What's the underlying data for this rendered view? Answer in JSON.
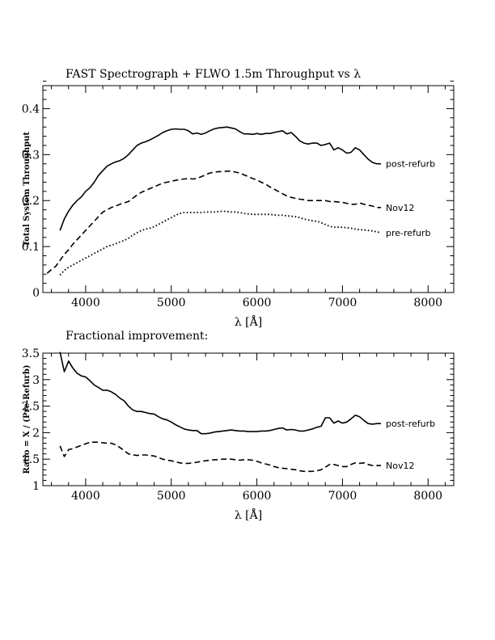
{
  "chart_data": [
    {
      "type": "line",
      "title": "FAST Spectrograph + FLWO 1.5m Throughput vs λ",
      "xlabel": "λ [Å]",
      "ylabel": "Total System Throughput",
      "xlim": [
        3500,
        8300
      ],
      "ylim": [
        0,
        0.45
      ],
      "x_ticks": [
        "4000",
        "5000",
        "6000",
        "7000",
        "8000"
      ],
      "y_ticks": [
        "0",
        "0.1",
        "0.2",
        "0.3",
        "0.4"
      ],
      "grid": false,
      "legend": "inline labels at right end of each curve",
      "series": [
        {
          "name": "post-refurb",
          "style": "solid",
          "x": [
            3700,
            3750,
            3800,
            3850,
            3900,
            3950,
            4000,
            4050,
            4100,
            4150,
            4200,
            4250,
            4300,
            4350,
            4400,
            4450,
            4500,
            4550,
            4600,
            4650,
            4700,
            4750,
            4800,
            4850,
            4900,
            4950,
            5000,
            5050,
            5100,
            5150,
            5200,
            5250,
            5300,
            5350,
            5400,
            5450,
            5500,
            5550,
            5600,
            5650,
            5700,
            5750,
            5800,
            5850,
            5900,
            5950,
            6000,
            6050,
            6100,
            6150,
            6200,
            6250,
            6300,
            6350,
            6400,
            6450,
            6500,
            6550,
            6600,
            6650,
            6700,
            6750,
            6800,
            6850,
            6900,
            6950,
            7000,
            7050,
            7100,
            7150,
            7200,
            7250,
            7300,
            7350,
            7400,
            7450
          ],
          "y": [
            0.135,
            0.16,
            0.177,
            0.19,
            0.2,
            0.208,
            0.22,
            0.228,
            0.24,
            0.255,
            0.265,
            0.275,
            0.28,
            0.284,
            0.287,
            0.292,
            0.3,
            0.31,
            0.32,
            0.325,
            0.328,
            0.332,
            0.337,
            0.342,
            0.348,
            0.352,
            0.355,
            0.356,
            0.355,
            0.355,
            0.352,
            0.345,
            0.347,
            0.344,
            0.347,
            0.352,
            0.356,
            0.358,
            0.359,
            0.36,
            0.358,
            0.356,
            0.35,
            0.345,
            0.345,
            0.344,
            0.346,
            0.344,
            0.346,
            0.346,
            0.348,
            0.35,
            0.352,
            0.345,
            0.348,
            0.34,
            0.33,
            0.325,
            0.323,
            0.325,
            0.325,
            0.32,
            0.322,
            0.325,
            0.31,
            0.315,
            0.31,
            0.303,
            0.305,
            0.315,
            0.31,
            0.3,
            0.29,
            0.283,
            0.28,
            0.28
          ]
        },
        {
          "name": "Nov12",
          "style": "dashed",
          "x": [
            3550,
            3600,
            3650,
            3700,
            3750,
            3800,
            3850,
            3900,
            3950,
            4000,
            4050,
            4100,
            4150,
            4200,
            4250,
            4300,
            4350,
            4400,
            4450,
            4500,
            4550,
            4600,
            4650,
            4700,
            4750,
            4800,
            4850,
            4900,
            4950,
            5000,
            5050,
            5100,
            5150,
            5200,
            5250,
            5300,
            5350,
            5400,
            5450,
            5500,
            5550,
            5600,
            5650,
            5700,
            5750,
            5800,
            5850,
            5900,
            5950,
            6000,
            6050,
            6100,
            6150,
            6200,
            6250,
            6300,
            6350,
            6400,
            6450,
            6500,
            6550,
            6600,
            6650,
            6700,
            6750,
            6800,
            6850,
            6900,
            6950,
            7000,
            7050,
            7100,
            7150,
            7200,
            7250,
            7300,
            7350,
            7400,
            7450
          ],
          "y": [
            0.042,
            0.05,
            0.057,
            0.07,
            0.083,
            0.093,
            0.105,
            0.115,
            0.125,
            0.135,
            0.145,
            0.155,
            0.165,
            0.175,
            0.18,
            0.185,
            0.188,
            0.192,
            0.195,
            0.198,
            0.205,
            0.212,
            0.218,
            0.222,
            0.226,
            0.23,
            0.234,
            0.238,
            0.24,
            0.242,
            0.244,
            0.246,
            0.247,
            0.248,
            0.247,
            0.248,
            0.252,
            0.256,
            0.26,
            0.262,
            0.263,
            0.263,
            0.264,
            0.264,
            0.262,
            0.26,
            0.256,
            0.252,
            0.248,
            0.245,
            0.24,
            0.236,
            0.23,
            0.225,
            0.22,
            0.215,
            0.21,
            0.207,
            0.205,
            0.203,
            0.202,
            0.2,
            0.2,
            0.2,
            0.2,
            0.2,
            0.198,
            0.198,
            0.197,
            0.196,
            0.194,
            0.192,
            0.192,
            0.195,
            0.192,
            0.19,
            0.188,
            0.185,
            0.185
          ]
        },
        {
          "name": "pre-refurb",
          "style": "dotted",
          "x": [
            3700,
            3750,
            3800,
            3850,
            3900,
            3950,
            4000,
            4050,
            4100,
            4150,
            4200,
            4250,
            4300,
            4350,
            4400,
            4450,
            4500,
            4550,
            4600,
            4650,
            4700,
            4750,
            4800,
            4850,
            4900,
            4950,
            5000,
            5050,
            5100,
            5150,
            5200,
            5250,
            5300,
            5350,
            5400,
            5450,
            5500,
            5550,
            5600,
            5650,
            5700,
            5750,
            5800,
            5850,
            5900,
            5950,
            6000,
            6050,
            6100,
            6150,
            6200,
            6250,
            6300,
            6350,
            6400,
            6450,
            6500,
            6550,
            6600,
            6650,
            6700,
            6750,
            6800,
            6850,
            6900,
            6950,
            7000,
            7050,
            7100,
            7150,
            7200,
            7250,
            7300,
            7350,
            7400,
            7450
          ],
          "y": [
            0.038,
            0.048,
            0.055,
            0.06,
            0.065,
            0.07,
            0.075,
            0.08,
            0.085,
            0.09,
            0.095,
            0.1,
            0.103,
            0.106,
            0.11,
            0.113,
            0.118,
            0.125,
            0.13,
            0.135,
            0.138,
            0.14,
            0.143,
            0.148,
            0.153,
            0.158,
            0.163,
            0.168,
            0.172,
            0.174,
            0.174,
            0.174,
            0.174,
            0.174,
            0.175,
            0.175,
            0.175,
            0.176,
            0.177,
            0.176,
            0.175,
            0.175,
            0.174,
            0.172,
            0.171,
            0.17,
            0.17,
            0.17,
            0.17,
            0.17,
            0.169,
            0.168,
            0.168,
            0.167,
            0.166,
            0.165,
            0.163,
            0.16,
            0.158,
            0.156,
            0.155,
            0.152,
            0.148,
            0.144,
            0.142,
            0.142,
            0.142,
            0.141,
            0.14,
            0.138,
            0.137,
            0.136,
            0.135,
            0.134,
            0.132,
            0.13
          ]
        }
      ]
    },
    {
      "type": "line",
      "title": "Fractional improvement:",
      "xlabel": "λ [Å]",
      "ylabel": "Ratio = X / (Pre-Refurb)",
      "xlim": [
        3500,
        8300
      ],
      "ylim": [
        1,
        3.5
      ],
      "x_ticks": [
        "4000",
        "5000",
        "6000",
        "7000",
        "8000"
      ],
      "y_ticks": [
        "1",
        "1.5",
        "2",
        "2.5",
        "3",
        "3.5"
      ],
      "grid": false,
      "legend": "inline labels at right end of each curve",
      "series": [
        {
          "name": "post-refurb",
          "style": "solid",
          "x": [
            3700,
            3750,
            3800,
            3850,
            3900,
            3950,
            4000,
            4050,
            4100,
            4150,
            4200,
            4250,
            4300,
            4350,
            4400,
            4450,
            4500,
            4550,
            4600,
            4650,
            4700,
            4750,
            4800,
            4850,
            4900,
            4950,
            5000,
            5050,
            5100,
            5150,
            5200,
            5250,
            5300,
            5350,
            5400,
            5450,
            5500,
            5550,
            5600,
            5650,
            5700,
            5750,
            5800,
            5850,
            5900,
            5950,
            6000,
            6050,
            6100,
            6150,
            6200,
            6250,
            6300,
            6350,
            6400,
            6450,
            6500,
            6550,
            6600,
            6650,
            6700,
            6750,
            6800,
            6850,
            6900,
            6950,
            7000,
            7050,
            7100,
            7150,
            7200,
            7250,
            7300,
            7350,
            7400,
            7450
          ],
          "y": [
            3.52,
            3.15,
            3.35,
            3.22,
            3.12,
            3.07,
            3.05,
            2.98,
            2.9,
            2.85,
            2.8,
            2.8,
            2.77,
            2.72,
            2.65,
            2.6,
            2.5,
            2.43,
            2.4,
            2.4,
            2.38,
            2.36,
            2.35,
            2.3,
            2.26,
            2.24,
            2.2,
            2.15,
            2.11,
            2.07,
            2.05,
            2.04,
            2.04,
            1.98,
            1.98,
            1.99,
            2.01,
            2.02,
            2.03,
            2.04,
            2.05,
            2.04,
            2.03,
            2.03,
            2.02,
            2.02,
            2.02,
            2.03,
            2.03,
            2.04,
            2.06,
            2.08,
            2.09,
            2.05,
            2.06,
            2.05,
            2.03,
            2.03,
            2.05,
            2.07,
            2.1,
            2.12,
            2.28,
            2.28,
            2.18,
            2.22,
            2.18,
            2.2,
            2.26,
            2.33,
            2.3,
            2.23,
            2.17,
            2.16,
            2.17,
            2.17
          ]
        },
        {
          "name": "Nov12",
          "style": "dashed",
          "x": [
            3700,
            3750,
            3800,
            3850,
            3900,
            3950,
            4000,
            4050,
            4100,
            4150,
            4200,
            4250,
            4300,
            4350,
            4400,
            4450,
            4500,
            4550,
            4600,
            4650,
            4700,
            4750,
            4800,
            4850,
            4900,
            4950,
            5000,
            5050,
            5100,
            5150,
            5200,
            5250,
            5300,
            5350,
            5400,
            5450,
            5500,
            5550,
            5600,
            5650,
            5700,
            5750,
            5800,
            5850,
            5900,
            5950,
            6000,
            6050,
            6100,
            6150,
            6200,
            6250,
            6300,
            6350,
            6400,
            6450,
            6500,
            6550,
            6600,
            6650,
            6700,
            6750,
            6800,
            6850,
            6900,
            6950,
            7000,
            7050,
            7100,
            7150,
            7200,
            7250,
            7300,
            7350,
            7400,
            7450
          ],
          "y": [
            1.75,
            1.55,
            1.68,
            1.7,
            1.73,
            1.76,
            1.79,
            1.82,
            1.82,
            1.82,
            1.81,
            1.8,
            1.8,
            1.77,
            1.72,
            1.66,
            1.6,
            1.58,
            1.57,
            1.58,
            1.58,
            1.57,
            1.56,
            1.53,
            1.5,
            1.48,
            1.47,
            1.45,
            1.43,
            1.42,
            1.42,
            1.43,
            1.44,
            1.46,
            1.47,
            1.48,
            1.49,
            1.49,
            1.5,
            1.5,
            1.5,
            1.49,
            1.48,
            1.49,
            1.49,
            1.48,
            1.46,
            1.43,
            1.41,
            1.39,
            1.36,
            1.34,
            1.33,
            1.32,
            1.31,
            1.3,
            1.28,
            1.27,
            1.27,
            1.27,
            1.28,
            1.3,
            1.35,
            1.4,
            1.4,
            1.38,
            1.36,
            1.36,
            1.4,
            1.43,
            1.42,
            1.43,
            1.4,
            1.38,
            1.38,
            1.38
          ]
        }
      ]
    }
  ]
}
